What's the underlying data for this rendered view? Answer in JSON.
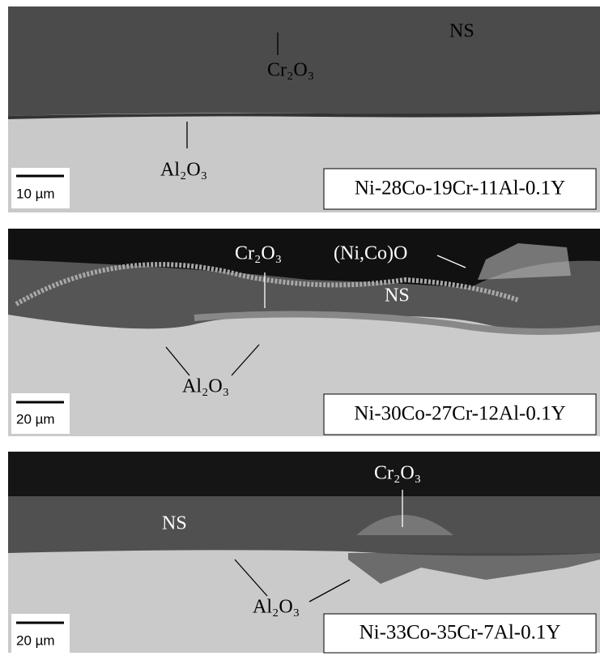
{
  "panels": [
    {
      "composition": "Ni-28Co-19Cr-11Al-0.1Y",
      "scale_bar": "10 µm",
      "labels": [
        "NS",
        "Cr₂O₃",
        "Al₂O₃"
      ]
    },
    {
      "composition": "Ni-30Co-27Cr-12Al-0.1Y",
      "scale_bar": "20 µm",
      "labels": [
        "Cr₂O₃",
        "(Ni,Co)O",
        "NS",
        "Al₂O₃"
      ]
    },
    {
      "composition": "Ni-33Co-35Cr-7Al-0.1Y",
      "scale_bar": "20 µm",
      "labels": [
        "Cr₂O₃",
        "NS",
        "Al₂O₃"
      ]
    }
  ]
}
